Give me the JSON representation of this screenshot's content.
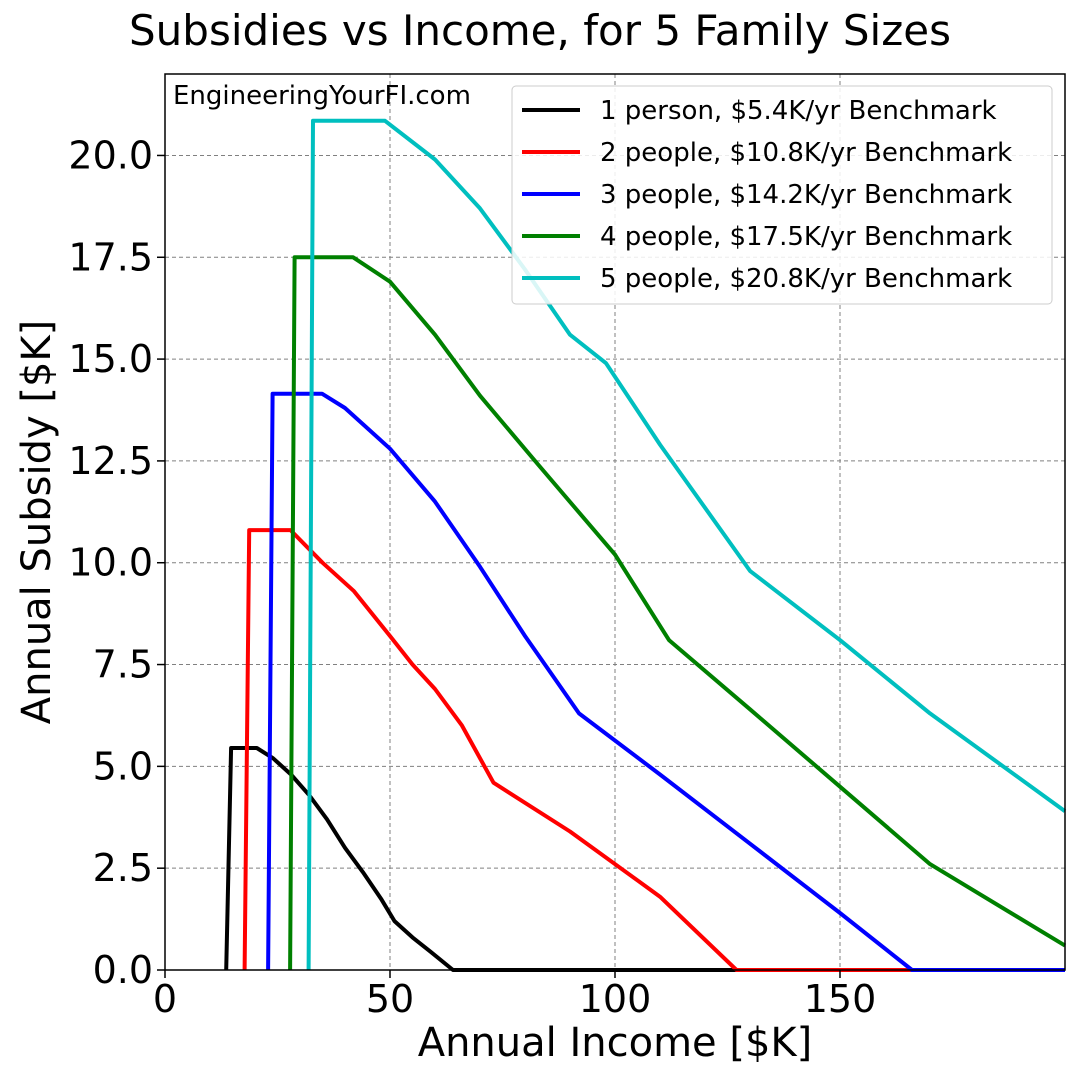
{
  "chart_data": {
    "type": "line",
    "title": "Subsidies vs Income, for 5 Family Sizes",
    "xlabel": "Annual Income [$K]",
    "ylabel": "Annual Subsidy [$K]",
    "watermark": "EngineeringYourFI.com",
    "xlim": [
      0,
      200
    ],
    "ylim": [
      0,
      22
    ],
    "xticks": [
      0,
      50,
      100,
      150
    ],
    "xtick_labels": [
      "0",
      "50",
      "100",
      "150"
    ],
    "yticks": [
      0,
      2.5,
      5,
      7.5,
      10,
      12.5,
      15,
      17.5,
      20
    ],
    "ytick_labels": [
      "0.0",
      "2.5",
      "5.0",
      "7.5",
      "10.0",
      "12.5",
      "15.0",
      "17.5",
      "20.0"
    ],
    "grid": true,
    "legend_position": "top-right",
    "series": [
      {
        "name": "1 person, $5.4K/yr Benchmark",
        "color": "#000000",
        "x": [
          13.6,
          14.7,
          20.4,
          24,
          28,
          32,
          36,
          40,
          44,
          48,
          51,
          55,
          59,
          64,
          200
        ],
        "y": [
          0,
          5.45,
          5.45,
          5.2,
          4.8,
          4.3,
          3.7,
          3.0,
          2.4,
          1.75,
          1.2,
          0.8,
          0.45,
          0,
          0
        ]
      },
      {
        "name": "2 people, $10.8K/yr Benchmark",
        "color": "#ff0000",
        "x": [
          17.7,
          18.7,
          27.9,
          35,
          42,
          50,
          55,
          60,
          66,
          73,
          90,
          110,
          127,
          200
        ],
        "y": [
          0,
          10.8,
          10.8,
          10.0,
          9.3,
          8.2,
          7.5,
          6.9,
          6.0,
          4.6,
          3.4,
          1.8,
          0,
          0
        ]
      },
      {
        "name": "3 people, $14.2K/yr Benchmark",
        "color": "#0000ff",
        "x": [
          22.9,
          23.9,
          34.9,
          40,
          50,
          60,
          70,
          80,
          92,
          110,
          130,
          150,
          166,
          200
        ],
        "y": [
          0,
          14.15,
          14.15,
          13.8,
          12.8,
          11.5,
          9.9,
          8.2,
          6.3,
          4.8,
          3.1,
          1.4,
          0,
          0
        ]
      },
      {
        "name": "4 people, $17.5K/yr Benchmark",
        "color": "#008000",
        "x": [
          27.8,
          28.8,
          41.8,
          50,
          60,
          70,
          83,
          100,
          112,
          130,
          150,
          170,
          200
        ],
        "y": [
          0,
          17.5,
          17.5,
          16.9,
          15.6,
          14.1,
          12.4,
          10.2,
          8.1,
          6.4,
          4.5,
          2.6,
          0.6
        ]
      },
      {
        "name": "5 people, $20.8K/yr Benchmark",
        "color": "#00bfbf",
        "x": [
          31.9,
          32.9,
          48.9,
          60,
          70,
          80,
          90,
          98,
          110,
          130,
          150,
          170,
          200
        ],
        "y": [
          0,
          20.85,
          20.85,
          19.9,
          18.7,
          17.2,
          15.6,
          14.9,
          12.9,
          9.8,
          8.1,
          6.3,
          3.9
        ]
      }
    ]
  }
}
